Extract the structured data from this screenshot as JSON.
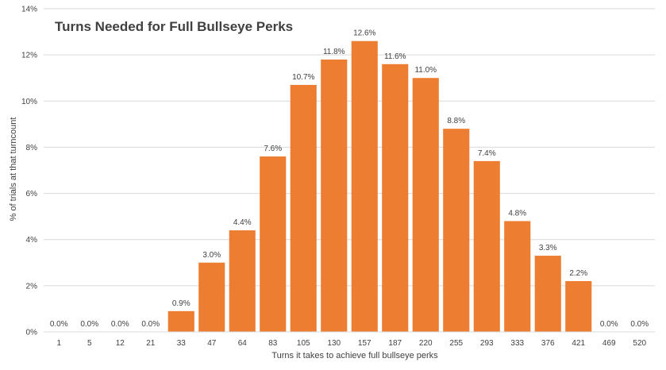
{
  "chart_data": {
    "type": "bar",
    "title": "Turns Needed for Full Bullseye Perks",
    "xlabel": "Turns it takes to achieve full bullseye perks",
    "ylabel": "% of trials at that turncount",
    "categories": [
      "1",
      "5",
      "12",
      "21",
      "33",
      "47",
      "64",
      "83",
      "105",
      "130",
      "157",
      "187",
      "220",
      "255",
      "293",
      "333",
      "376",
      "421",
      "469",
      "520"
    ],
    "values": [
      0.0,
      0.0,
      0.0,
      0.0,
      0.9,
      3.0,
      4.4,
      7.6,
      10.7,
      11.8,
      12.6,
      11.6,
      11.0,
      8.8,
      7.4,
      4.8,
      3.3,
      2.2,
      0.0,
      0.0
    ],
    "data_labels": [
      "0.0%",
      "0.0%",
      "0.0%",
      "0.0%",
      "0.9%",
      "3.0%",
      "4.4%",
      "7.6%",
      "10.7%",
      "11.8%",
      "12.6%",
      "11.6%",
      "11.0%",
      "8.8%",
      "7.4%",
      "4.8%",
      "3.3%",
      "2.2%",
      "0.0%",
      "0.0%"
    ],
    "ylim": [
      0,
      14
    ],
    "y_ticks": [
      0,
      2,
      4,
      6,
      8,
      10,
      12,
      14
    ],
    "y_tick_labels": [
      "0%",
      "2%",
      "4%",
      "6%",
      "8%",
      "10%",
      "12%",
      "14%"
    ],
    "grid": "horizontal",
    "legend": "none",
    "bar_color": "#ED7D31",
    "grid_color": "#D9D9D9",
    "text_color": "#404040",
    "title_color": "#404040"
  }
}
